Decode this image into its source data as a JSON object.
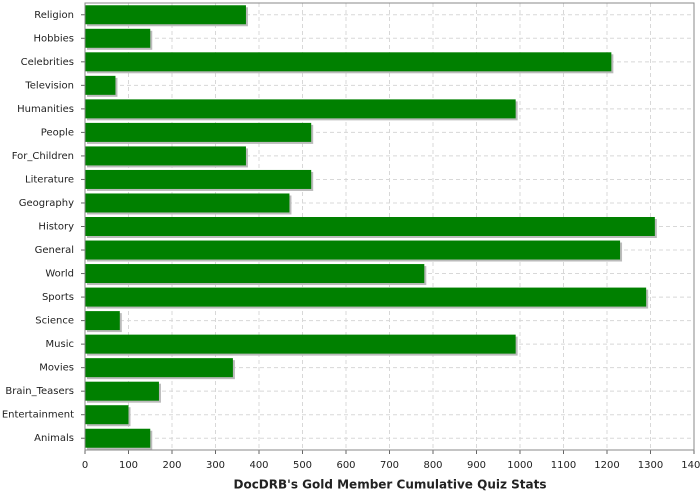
{
  "chart_data": {
    "type": "bar",
    "orientation": "horizontal",
    "title": "DocDRB's Gold Member Cumulative Quiz Stats",
    "categories": [
      "Religion",
      "Hobbies",
      "Celebrities",
      "Television",
      "Humanities",
      "People",
      "For_Children",
      "Literature",
      "Geography",
      "History",
      "General",
      "World",
      "Sports",
      "Science",
      "Music",
      "Movies",
      "Brain_Teasers",
      "Entertainment",
      "Animals"
    ],
    "values": [
      370,
      150,
      1210,
      70,
      990,
      520,
      370,
      520,
      470,
      1310,
      1230,
      780,
      1290,
      80,
      990,
      340,
      170,
      100,
      150
    ],
    "color": "#008000",
    "xlim": [
      0,
      1400
    ],
    "xticks": [
      0,
      100,
      200,
      300,
      400,
      500,
      600,
      700,
      800,
      900,
      1000,
      1100,
      1200,
      1300,
      1400
    ],
    "grid": true
  }
}
